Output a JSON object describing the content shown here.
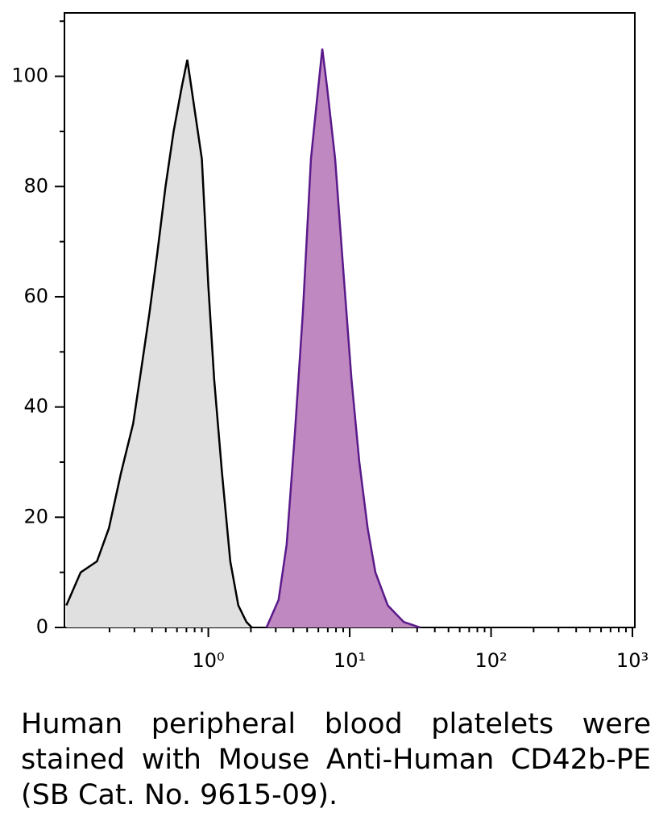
{
  "chart_data": {
    "type": "histogram-overlay",
    "log_x": true,
    "xlim": [
      0.096,
      1040
    ],
    "ylim": [
      0,
      111.5
    ],
    "xticks": [
      {
        "value": 1,
        "label": "10⁰"
      },
      {
        "value": 10,
        "label": "10¹"
      },
      {
        "value": 100,
        "label": "10²"
      },
      {
        "value": 1000,
        "label": "10³"
      }
    ],
    "xminorticks": [
      0.2,
      0.3,
      0.4,
      0.5,
      0.6,
      0.7,
      0.8,
      0.9,
      2,
      3,
      4,
      5,
      6,
      7,
      8,
      9,
      20,
      30,
      40,
      50,
      60,
      70,
      80,
      90,
      200,
      300,
      400,
      500,
      600,
      700,
      800,
      900
    ],
    "yticks": [
      0,
      20,
      40,
      60,
      80,
      100
    ],
    "yminorticks": [
      10,
      30,
      50,
      70,
      90,
      110
    ],
    "series": [
      {
        "color": "#000000",
        "fill": "#e0e0e0",
        "x": [
          0.099,
          0.125,
          0.163,
          0.198,
          0.241,
          0.294,
          0.336,
          0.383,
          0.436,
          0.498,
          0.568,
          0.648,
          0.71,
          0.789,
          0.9,
          1.0,
          1.1,
          1.25,
          1.43,
          1.63,
          1.86,
          2.03
        ],
        "values": [
          4,
          10,
          12,
          18,
          28,
          37,
          47,
          57,
          68,
          80,
          90,
          98,
          103,
          95,
          85,
          62,
          45,
          28,
          12,
          4,
          1,
          0
        ]
      },
      {
        "color": "#5a1a8a",
        "fill": "#c088c0",
        "x": [
          2.58,
          3.14,
          3.58,
          4.09,
          4.66,
          5.32,
          5.83,
          6.4,
          6.92,
          7.89,
          9.0,
          10.3,
          11.7,
          13.4,
          15.2,
          18.6,
          24.1,
          31.4
        ],
        "values": [
          0,
          5,
          15,
          35,
          57,
          85,
          95,
          105,
          98,
          85,
          65,
          45,
          30,
          18,
          10,
          4,
          1,
          0
        ]
      }
    ],
    "caption": "Human peripheral blood platelets were stained with Mouse Anti-Human CD42b-PE (SB Cat. No. 9615-09)."
  }
}
